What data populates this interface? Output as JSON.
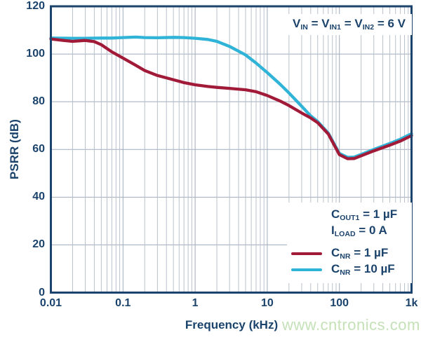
{
  "colors": {
    "axis": "#1b436b",
    "text": "#1b436b",
    "grid_major": "#9fabba",
    "grid_minor": "#b9c1cb",
    "series_red": "#a11a38",
    "series_cyan": "#2fb3d6",
    "watermark": "#c5e1b8"
  },
  "annotation": "V_{IN} = V_{IN1} = V_{IN2} = 6 V",
  "conditions": [
    "C_{OUT1} = 1 µF",
    "I_{LOAD} = 0 A"
  ],
  "watermark": "www.cntronics.com",
  "chart_data": {
    "type": "line",
    "title": "",
    "xlabel": "Frequency (kHz)",
    "ylabel": "PSRR (dB)",
    "x_scale": "log",
    "xlim": [
      0.01,
      1000
    ],
    "ylim": [
      0,
      120
    ],
    "grid": true,
    "legend_position": "lower right",
    "x_tick_values": [
      0.01,
      0.1,
      1,
      10,
      100,
      1000
    ],
    "x_tick_labels": [
      "0.01",
      "0.1",
      "1",
      "10",
      "100",
      "1k"
    ],
    "y_ticks": [
      0,
      20,
      40,
      60,
      80,
      100,
      120
    ],
    "y_tick_labels": [
      "0",
      "20",
      "40",
      "60",
      "80",
      "100",
      "120"
    ],
    "series": [
      {
        "name": "C_{NR} = 1 µF",
        "color": "#a11a38",
        "points": [
          [
            0.01,
            106.3
          ],
          [
            0.015,
            105.7
          ],
          [
            0.02,
            105.3
          ],
          [
            0.03,
            105.7
          ],
          [
            0.04,
            105.2
          ],
          [
            0.05,
            103.9
          ],
          [
            0.07,
            100.9
          ],
          [
            0.1,
            98.3
          ],
          [
            0.15,
            95.3
          ],
          [
            0.2,
            93.1
          ],
          [
            0.3,
            91.0
          ],
          [
            0.5,
            89.2
          ],
          [
            0.7,
            88.0
          ],
          [
            1,
            87.1
          ],
          [
            1.5,
            86.4
          ],
          [
            2,
            86.0
          ],
          [
            3,
            85.6
          ],
          [
            5,
            85.0
          ],
          [
            7,
            84.2
          ],
          [
            10,
            82.6
          ],
          [
            15,
            80.3
          ],
          [
            20,
            78.4
          ],
          [
            30,
            75.3
          ],
          [
            40,
            73.2
          ],
          [
            50,
            71.2
          ],
          [
            70,
            66.5
          ],
          [
            100,
            57.8
          ],
          [
            130,
            56.1
          ],
          [
            160,
            56.2
          ],
          [
            200,
            57.3
          ],
          [
            300,
            59.4
          ],
          [
            500,
            61.8
          ],
          [
            700,
            63.5
          ],
          [
            1000,
            65.8
          ]
        ]
      },
      {
        "name": "C_{NR} = 10 µF",
        "color": "#2fb3d6",
        "points": [
          [
            0.01,
            106.7
          ],
          [
            0.02,
            106.6
          ],
          [
            0.03,
            106.6
          ],
          [
            0.05,
            106.7
          ],
          [
            0.07,
            106.7
          ],
          [
            0.1,
            106.9
          ],
          [
            0.15,
            107.1
          ],
          [
            0.2,
            106.9
          ],
          [
            0.3,
            106.8
          ],
          [
            0.5,
            107.0
          ],
          [
            0.7,
            106.9
          ],
          [
            1,
            106.6
          ],
          [
            1.5,
            106.1
          ],
          [
            2,
            105.3
          ],
          [
            3,
            103.2
          ],
          [
            5,
            99.6
          ],
          [
            7,
            96.2
          ],
          [
            10,
            92.2
          ],
          [
            15,
            87.4
          ],
          [
            20,
            83.7
          ],
          [
            30,
            78.1
          ],
          [
            40,
            74.1
          ],
          [
            50,
            71.7
          ],
          [
            70,
            66.9
          ],
          [
            100,
            58.3
          ],
          [
            130,
            56.7
          ],
          [
            160,
            56.8
          ],
          [
            200,
            57.9
          ],
          [
            300,
            60.0
          ],
          [
            500,
            62.5
          ],
          [
            700,
            64.3
          ],
          [
            1000,
            66.6
          ]
        ]
      }
    ]
  }
}
